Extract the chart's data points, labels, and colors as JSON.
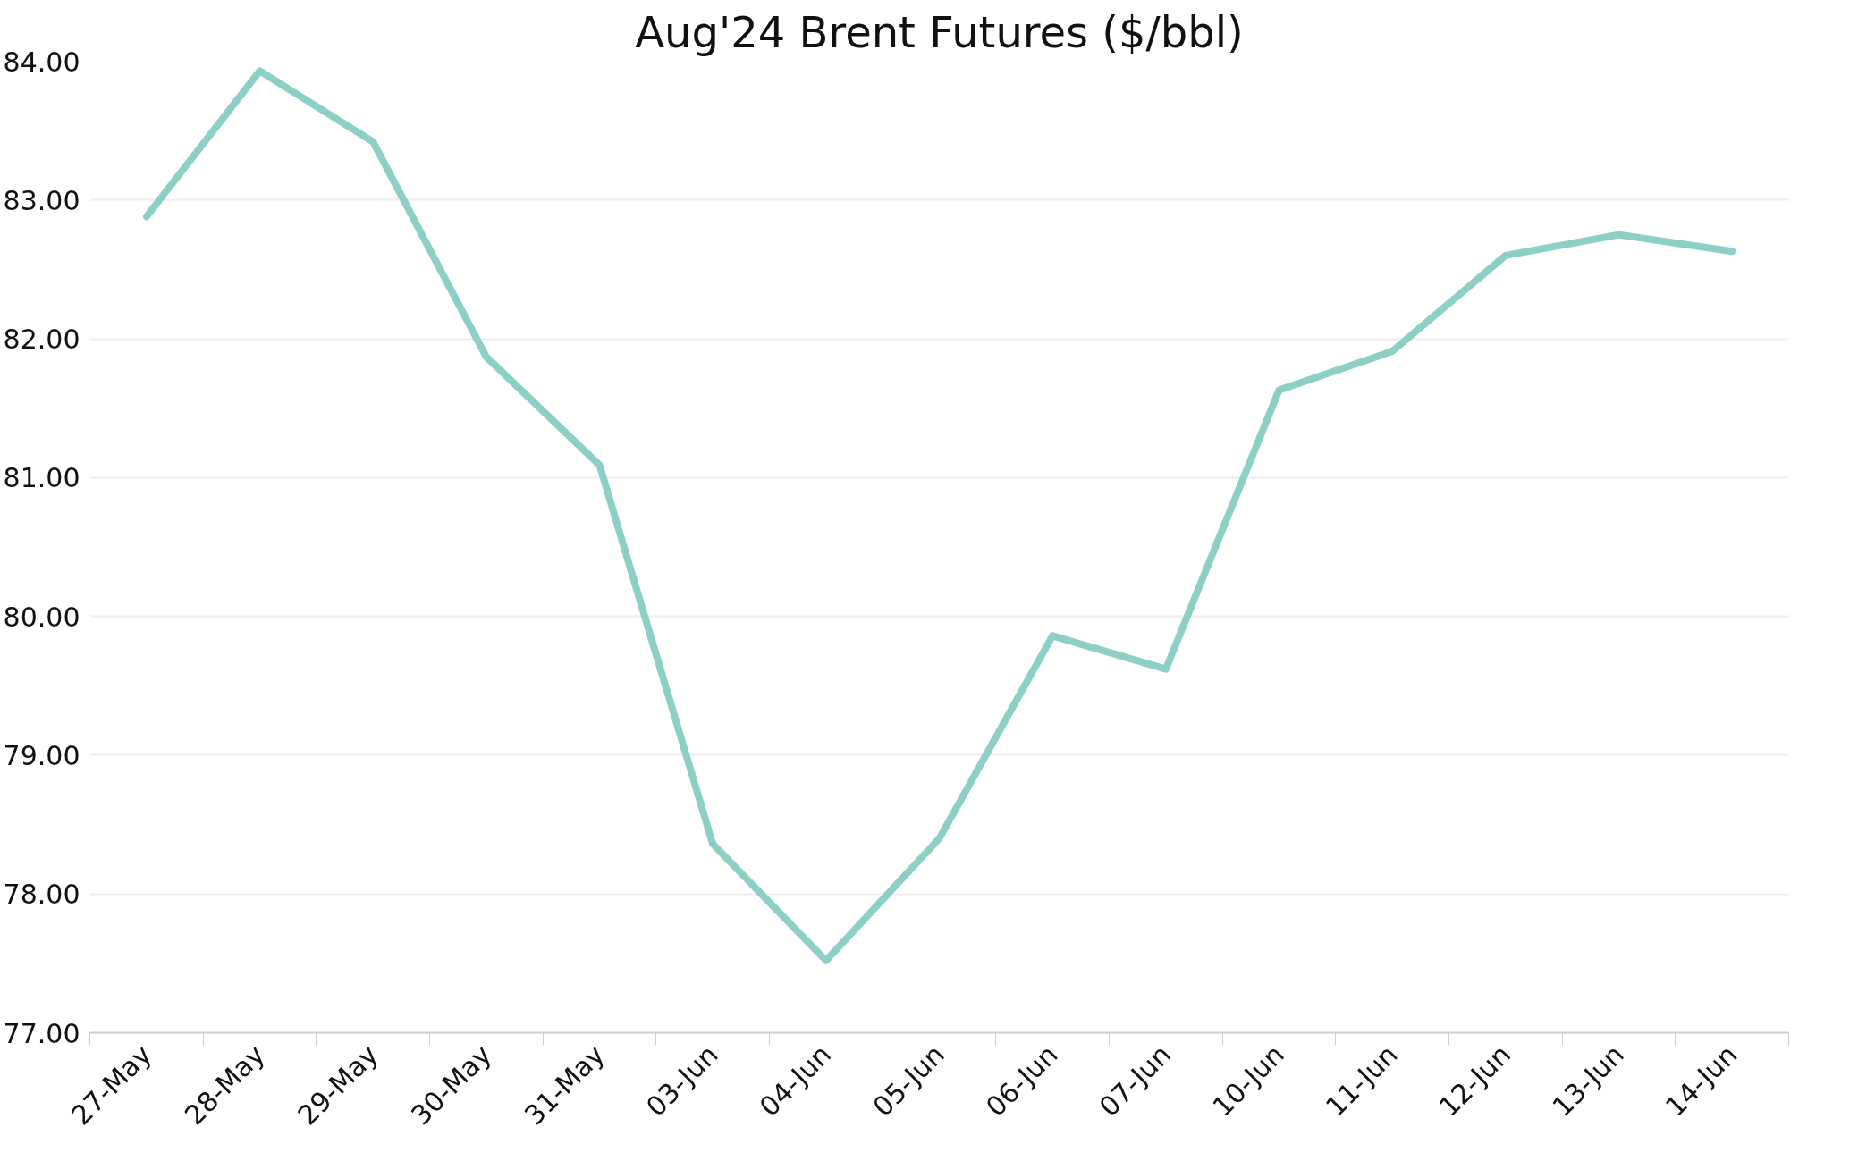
{
  "chart_data": {
    "type": "line",
    "title": "Aug'24 Brent Futures ($/bbl)",
    "categories": [
      "27-May",
      "28-May",
      "29-May",
      "30-May",
      "31-May",
      "03-Jun",
      "04-Jun",
      "05-Jun",
      "06-Jun",
      "07-Jun",
      "10-Jun",
      "11-Jun",
      "12-Jun",
      "13-Jun",
      "14-Jun"
    ],
    "series": [
      {
        "color": "#8ccfc6",
        "values": [
          82.88,
          83.93,
          83.42,
          81.87,
          81.09,
          78.36,
          77.52,
          78.4,
          79.86,
          79.62,
          81.63,
          81.91,
          82.6,
          82.75,
          82.63
        ]
      }
    ],
    "ylim": [
      77,
      84
    ],
    "yticks": [
      {
        "value": 77,
        "label": "77.00"
      },
      {
        "value": 78,
        "label": "78.00"
      },
      {
        "value": 79,
        "label": "79.00"
      },
      {
        "value": 80,
        "label": "80.00"
      },
      {
        "value": 81,
        "label": "81.00"
      },
      {
        "value": 82,
        "label": "82.00"
      },
      {
        "value": 83,
        "label": "83.00"
      },
      {
        "value": 84,
        "label": "84.00"
      }
    ],
    "grid": "y",
    "marker": "none",
    "line_style": "solid"
  }
}
